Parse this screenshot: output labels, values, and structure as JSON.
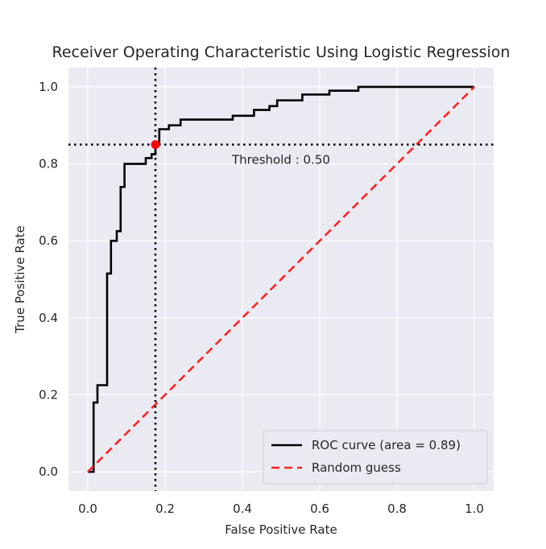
{
  "chart_data": {
    "type": "line",
    "title": "Receiver Operating Characteristic Using Logistic Regression",
    "xlabel": "False Positive Rate",
    "ylabel": "True Positive Rate",
    "xlim": [
      -0.05,
      1.05
    ],
    "ylim": [
      -0.05,
      1.05
    ],
    "xticks": [
      "0.0",
      "0.2",
      "0.4",
      "0.6",
      "0.8",
      "1.0"
    ],
    "yticks": [
      "0.0",
      "0.2",
      "0.4",
      "0.6",
      "0.8",
      "1.0"
    ],
    "grid": true,
    "legend_position": "lower-right",
    "series": [
      {
        "name": "ROC curve (area = 0.89)",
        "color": "#000000",
        "style": "solid",
        "x": [
          0.0,
          0.015,
          0.015,
          0.025,
          0.025,
          0.05,
          0.05,
          0.06,
          0.06,
          0.075,
          0.075,
          0.085,
          0.085,
          0.095,
          0.095,
          0.15,
          0.15,
          0.165,
          0.165,
          0.175,
          0.175,
          0.185,
          0.185,
          0.21,
          0.21,
          0.24,
          0.24,
          0.375,
          0.375,
          0.43,
          0.43,
          0.47,
          0.47,
          0.49,
          0.49,
          0.555,
          0.555,
          0.625,
          0.625,
          0.7,
          0.7,
          1.0
        ],
        "y": [
          0.0,
          0.0,
          0.18,
          0.18,
          0.225,
          0.225,
          0.515,
          0.515,
          0.6,
          0.6,
          0.625,
          0.625,
          0.74,
          0.74,
          0.8,
          0.8,
          0.815,
          0.815,
          0.825,
          0.825,
          0.85,
          0.85,
          0.89,
          0.89,
          0.9,
          0.9,
          0.915,
          0.915,
          0.925,
          0.925,
          0.94,
          0.94,
          0.95,
          0.95,
          0.965,
          0.965,
          0.98,
          0.98,
          0.99,
          0.99,
          1.0,
          1.0
        ]
      },
      {
        "name": "Random guess",
        "color": "#ff2222",
        "style": "dashed",
        "x": [
          0.0,
          1.0
        ],
        "y": [
          0.0,
          1.0
        ]
      }
    ],
    "threshold": {
      "label": "Threshold : 0.50",
      "x": 0.175,
      "y": 0.85,
      "point_color": "#ff0000"
    }
  }
}
